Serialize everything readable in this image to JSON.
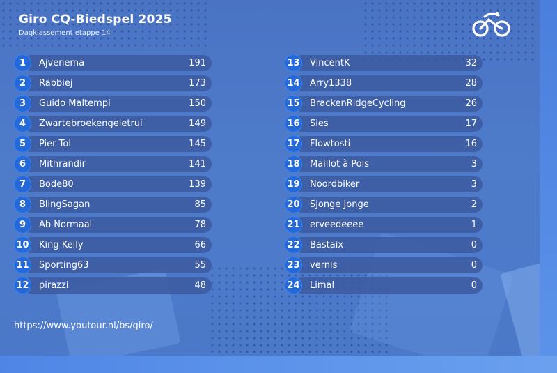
{
  "header": {
    "title": "Giro CQ-Biedspel 2025",
    "subtitle": "Dagklassement etappe 14",
    "logo_icon": "cyclist-icon"
  },
  "colors": {
    "background": "#4b78c8",
    "row": "#3c5aa0",
    "badge": "#2568d8"
  },
  "left_rows": [
    {
      "rank": "1",
      "name": "Ajvenema",
      "score": "191"
    },
    {
      "rank": "2",
      "name": "Rabbiej",
      "score": "173"
    },
    {
      "rank": "3",
      "name": "Guido Maltempi",
      "score": "150"
    },
    {
      "rank": "4",
      "name": "Zwartebroekengeletrui",
      "score": "149"
    },
    {
      "rank": "5",
      "name": "Pier Tol",
      "score": "145"
    },
    {
      "rank": "6",
      "name": "Mithrandir",
      "score": "141"
    },
    {
      "rank": "7",
      "name": "Bode80",
      "score": "139"
    },
    {
      "rank": "8",
      "name": "BlingSagan",
      "score": "85"
    },
    {
      "rank": "9",
      "name": "Ab Normaal",
      "score": "78"
    },
    {
      "rank": "10",
      "name": "King Kelly",
      "score": "66"
    },
    {
      "rank": "11",
      "name": "Sporting63",
      "score": "55"
    },
    {
      "rank": "12",
      "name": "pirazzi",
      "score": "48"
    }
  ],
  "right_rows": [
    {
      "rank": "13",
      "name": "VincentK",
      "score": "32"
    },
    {
      "rank": "14",
      "name": "Arry1338",
      "score": "28"
    },
    {
      "rank": "15",
      "name": "BrackenRidgeCycling",
      "score": "26"
    },
    {
      "rank": "16",
      "name": "Sies",
      "score": "17"
    },
    {
      "rank": "17",
      "name": "Flowtosti",
      "score": "16"
    },
    {
      "rank": "18",
      "name": "Maillot à Pois",
      "score": "3"
    },
    {
      "rank": "19",
      "name": "Noordbiker",
      "score": "3"
    },
    {
      "rank": "20",
      "name": "Sjonge Jonge",
      "score": "2"
    },
    {
      "rank": "21",
      "name": "erveedeeee",
      "score": "1"
    },
    {
      "rank": "22",
      "name": "Bastaix",
      "score": "0"
    },
    {
      "rank": "23",
      "name": "vernis",
      "score": "0"
    },
    {
      "rank": "24",
      "name": "Limal",
      "score": "0"
    }
  ],
  "footer": {
    "url": "https://www.youtour.nl/bs/giro/"
  }
}
